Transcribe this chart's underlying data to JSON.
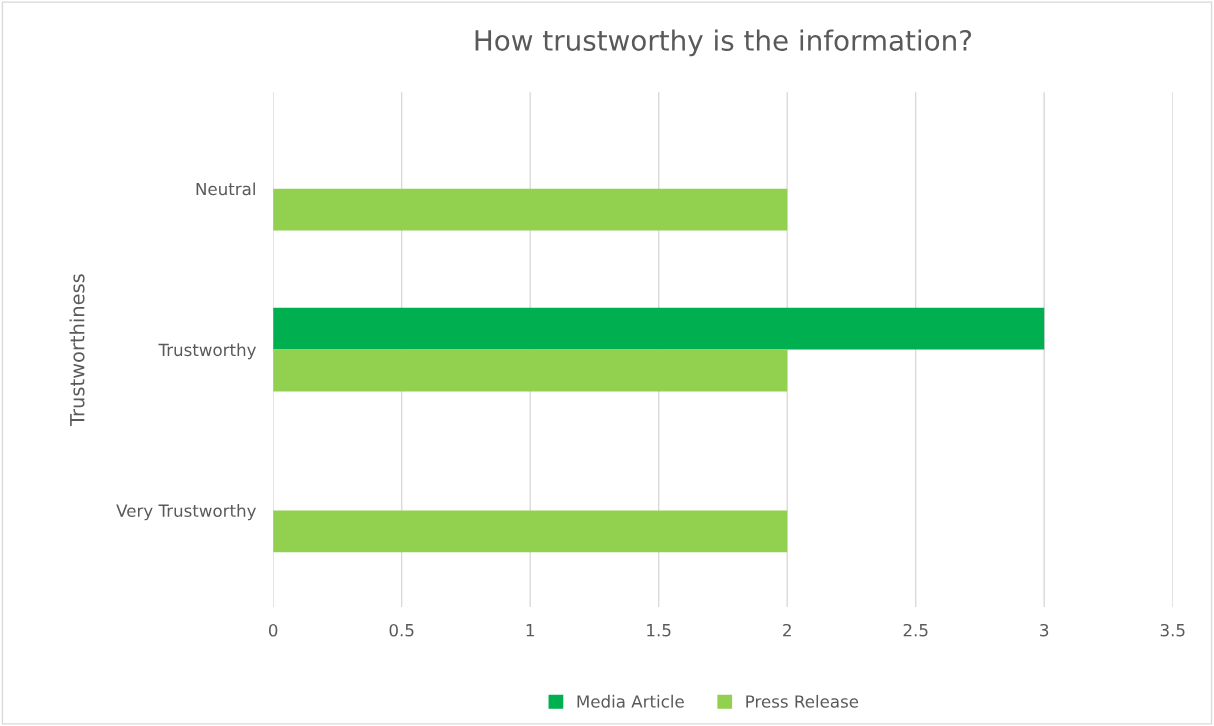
{
  "chart_data": {
    "type": "bar",
    "orientation": "horizontal",
    "title": "How trustworthy is the information?",
    "ylabel": "Trustworthiness",
    "categories": [
      "Neutral",
      "Trustworthy",
      "Very Trustworthy"
    ],
    "series": [
      {
        "name": "Media Article",
        "color": "#00b050",
        "values": [
          0,
          3,
          0
        ]
      },
      {
        "name": "Press Release",
        "color": "#92d050",
        "values": [
          2,
          2,
          2
        ]
      }
    ],
    "xlim": [
      0,
      3.5
    ],
    "xticks": [
      0,
      0.5,
      1,
      1.5,
      2,
      2.5,
      3,
      3.5
    ],
    "grid": "x",
    "legend": "bottom"
  }
}
